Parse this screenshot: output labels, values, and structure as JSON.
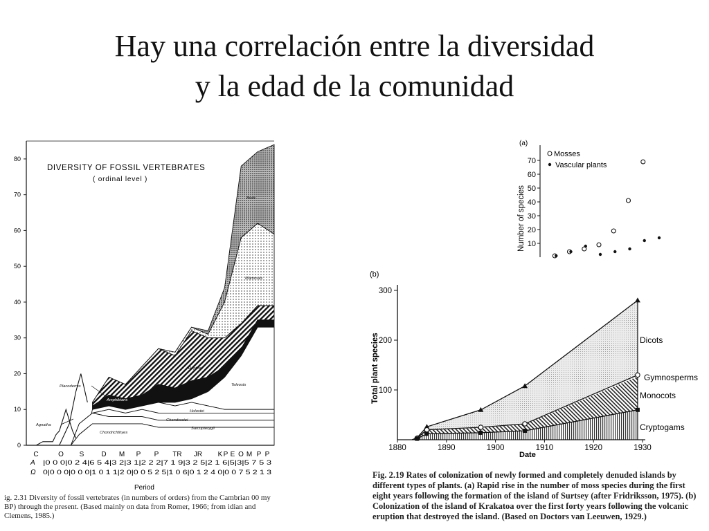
{
  "slide": {
    "title_line1": "Hay una correlación entre la diversidad",
    "title_line2": "y la edad de la comunidad"
  },
  "chart_data": [
    {
      "id": "fossil",
      "type": "area",
      "title": "DIVERSITY OF FOSSIL VERTEBRATES",
      "subtitle": "( ordinal level )",
      "xlabel": "Period",
      "ylabel": "",
      "ylim": [
        0,
        85
      ],
      "yticks": [
        0,
        10,
        20,
        30,
        40,
        50,
        60,
        70,
        80
      ],
      "periods": [
        "C",
        "O",
        "S",
        "D",
        "M",
        "P",
        "P",
        "TR",
        "JR",
        "K",
        "P",
        "E",
        "O",
        "M",
        "P",
        "P"
      ],
      "row_markers": [
        "A",
        "Ω"
      ],
      "row1": "|0 0 0|0 2 4|6 5 4|3 2|3 1|2 2 2|7 1 9|3 2 5|2 1 6|5|3|5 7 5 3",
      "row2": "0|0 0 0|0 0 0|1 0 1 1|2 0|0 0 5 2 5|1 0 6|0 1 2 4 0|0 0 7 5 2 1 3",
      "series": [
        {
          "name": "Agnatha",
          "x": [
            0,
            0.6,
            1,
            1.6,
            1.8,
            2.0,
            2.4,
            2.8,
            3.0
          ],
          "values": [
            0,
            0,
            1,
            1,
            3,
            4,
            10,
            4,
            2
          ]
        },
        {
          "name": "Placoderms",
          "x": [
            2.0,
            2.6,
            3.0,
            3.3,
            3.7
          ],
          "values": [
            0,
            6,
            15,
            20,
            12
          ]
        },
        {
          "name": "Chondrichthyes",
          "x": [
            2.7,
            3.2,
            4,
            5,
            6,
            7,
            8,
            9,
            10,
            11,
            12,
            13,
            14,
            15
          ],
          "values": [
            0,
            3,
            6,
            6,
            6,
            6,
            5,
            5,
            5,
            5,
            5,
            5,
            5,
            5
          ]
        },
        {
          "name": "Sarcopterygii",
          "x": [
            2.7,
            3.2,
            4,
            5,
            6,
            7,
            8,
            9,
            10,
            11,
            12,
            13,
            14,
            15
          ],
          "values": [
            0,
            6,
            9,
            8,
            8,
            8,
            7,
            7,
            7,
            7,
            7,
            7,
            7,
            7
          ]
        },
        {
          "name": "Chondrostei",
          "x": [
            3.5,
            4,
            5,
            6,
            7,
            8,
            9,
            10,
            11,
            12,
            13,
            14,
            15
          ],
          "values": [
            0,
            9,
            10,
            9,
            10,
            9,
            9,
            9,
            9,
            9,
            9,
            9,
            9
          ]
        },
        {
          "name": "Holostei",
          "x": [
            4,
            5,
            6,
            7,
            8,
            9,
            10,
            11,
            12,
            13,
            14,
            15
          ],
          "values": [
            10,
            11,
            10,
            11,
            12,
            11,
            12,
            11,
            10,
            10,
            10,
            10
          ]
        },
        {
          "name": "Teleosts",
          "x": [
            4,
            5,
            6,
            7,
            8,
            9,
            10,
            11,
            12,
            13,
            14,
            15
          ],
          "values": [
            10,
            11,
            10,
            11,
            12,
            12,
            13,
            15,
            19,
            25,
            33,
            33
          ]
        },
        {
          "name": "Amphibians",
          "x": [
            4,
            5,
            6,
            7,
            8,
            9,
            10,
            11,
            12,
            13,
            14,
            15
          ],
          "values": [
            11,
            14,
            13,
            14,
            17,
            16,
            18,
            19,
            22,
            27,
            35,
            35
          ]
        },
        {
          "name": "Reptiles",
          "x": [
            4,
            5,
            6,
            7,
            8,
            9,
            10,
            11,
            12,
            13,
            14,
            15
          ],
          "values": [
            12,
            19,
            17,
            22,
            27,
            25,
            32,
            30,
            30,
            34,
            39,
            39
          ]
        },
        {
          "name": "Mammals",
          "x": [
            4,
            5,
            6,
            7,
            8,
            9,
            10,
            11,
            12,
            13,
            14,
            15
          ],
          "values": [
            12,
            19,
            17,
            22,
            27,
            26,
            33,
            31,
            40,
            58,
            62,
            59
          ]
        },
        {
          "name": "Birds",
          "x": [
            4,
            5,
            6,
            7,
            8,
            9,
            10,
            11,
            12,
            13,
            14,
            15
          ],
          "values": [
            12,
            19,
            17,
            22,
            27,
            26,
            33,
            32,
            44,
            78,
            82,
            84
          ]
        }
      ],
      "area_labels": [
        "Birds",
        "Mammals",
        "Reptiles",
        "Teleosts",
        "Amphibians",
        "Holostei",
        "Chondrostei",
        "Sarcopterygii",
        "Chondrichthyes",
        "Placoderms",
        "Agnatha"
      ]
    },
    {
      "id": "moss",
      "type": "scatter",
      "panel_label": "(a)",
      "ylabel": "Number of species",
      "yticks": [
        10,
        20,
        30,
        40,
        50,
        60,
        70
      ],
      "ylim": [
        0,
        75
      ],
      "xlim": [
        0,
        8
      ],
      "series": [
        {
          "name": "Mosses",
          "marker": "open-circle",
          "x": [
            1,
            2,
            3,
            4,
            5,
            6,
            7
          ],
          "y": [
            1,
            4,
            6,
            9,
            19,
            41,
            69
          ]
        },
        {
          "name": "Vascular plants",
          "marker": "filled-dot",
          "x": [
            1,
            2,
            3,
            4,
            5,
            6,
            7,
            8
          ],
          "y": [
            1,
            4,
            8,
            2,
            4,
            6,
            12,
            14
          ]
        }
      ]
    },
    {
      "id": "krakatoa",
      "type": "area",
      "panel_label": "(b)",
      "xlabel": "Date",
      "ylabel": "Total plant species",
      "xlim": [
        1880,
        1930
      ],
      "ylim": [
        0,
        300
      ],
      "xticks": [
        1880,
        1890,
        1900,
        1910,
        1920,
        1930
      ],
      "yticks": [
        100,
        200,
        300
      ],
      "x": [
        1883,
        1884,
        1886,
        1897,
        1906,
        1929
      ],
      "series": [
        {
          "name": "Dicots",
          "marker": "filled-triangle",
          "values": [
            0,
            4,
            26,
            60,
            108,
            280
          ]
        },
        {
          "name": "Gymnosperms",
          "marker": "open-circle",
          "values": [
            0,
            3,
            20,
            25,
            32,
            130
          ]
        },
        {
          "name": "Monocots",
          "marker": "none",
          "values": [
            0,
            3,
            19,
            24,
            31,
            127
          ]
        },
        {
          "name": "Cryptogams",
          "marker": "filled-square",
          "values": [
            0,
            2,
            12,
            14,
            18,
            60
          ]
        }
      ]
    }
  ],
  "captions": {
    "fossil": "ig. 2.31  Diversity of fossil vertebrates (in numbers of orders) from the Cambrian 00 my BP) through the present. (Based mainly on data from Romer, 1966; from idian and Clemens, 1985.)",
    "plants": "Fig. 2.19  Rates of colonization of newly formed and completely denuded islands by different types of plants. (a) Rapid rise in the number of moss species during the first eight years following the formation of the island of Surtsey (after Fridriksson, 1975). (b) Colonization of the island of Krakatoa over the first forty years following the volcanic eruption that destroyed the island. (Based on Doctors van Leeuwen, 1929.)"
  }
}
